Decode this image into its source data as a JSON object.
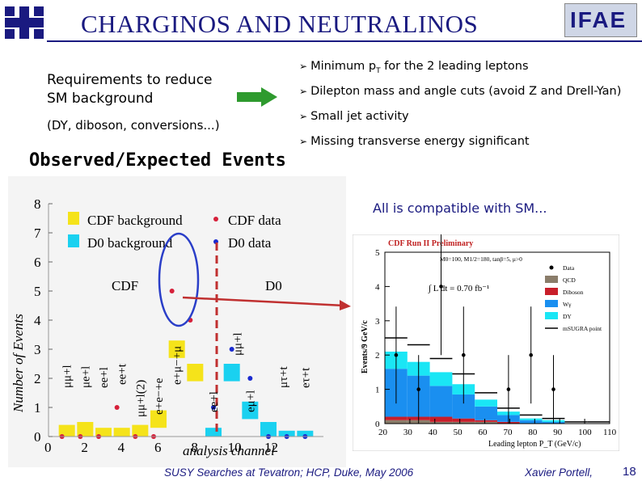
{
  "header": {
    "title": "CHARGINOS AND NEUTRALINOS",
    "left_logo_alt": "Fermilab logo",
    "right_logo_text": "IFAE"
  },
  "requirements": {
    "line1": "Requirements to reduce",
    "line2": "SM background",
    "dy_note": "(DY, diboson, conversions...)"
  },
  "bullets": [
    {
      "text": "Minimum p",
      "sub": "T",
      "rest": " for the 2 leading leptons"
    },
    {
      "text": "Dilepton mass and angle cuts (avoid Z and Drell-Yan)"
    },
    {
      "text": "Small jet activity"
    },
    {
      "text": "Missing transverse energy significant"
    }
  ],
  "observed_label": "Observed/Expected Events",
  "compat_note": "All is compatible with SM...",
  "colors": {
    "title_blue": "#1a1a80",
    "arrow_green": "#2e9a2e",
    "cdf_bkg": "#f5e31a",
    "d0_bkg": "#1ad1f0",
    "cdf_data": "#d6203a",
    "d0_data": "#1a2ad0",
    "ellipse": "#2a3ec8",
    "connector": "#c03030"
  },
  "chart_data": [
    {
      "type": "bar",
      "title": "",
      "xlabel": "analysis channel",
      "ylabel": "Number of Events",
      "xlim": [
        0,
        15
      ],
      "ylim": [
        0,
        8
      ],
      "x_ticks": [
        "0",
        "2",
        "4",
        "6",
        "8",
        "10",
        "12"
      ],
      "y_ticks": [
        "0",
        "1",
        "2",
        "3",
        "4",
        "5",
        "6",
        "7",
        "8"
      ],
      "legend": [
        "CDF background",
        "CDF data",
        "D0 background",
        "D0 data"
      ],
      "region_labels": [
        "CDF",
        "D0"
      ],
      "channel_labels": [
        "μμ+l",
        "μe+l",
        "ee+l",
        "ee+t",
        "μμ+l(2)",
        "e+e−+e",
        "e+μ−+μ",
        "ee+l",
        "eμ+l",
        "μμ+l",
        "μτ+t",
        "eτ+t"
      ],
      "series": [
        {
          "name": "CDF background",
          "x": [
            1,
            2,
            3,
            4,
            5,
            6,
            7,
            8
          ],
          "values": [
            0.4,
            0.5,
            0.3,
            0.3,
            0.4,
            0.9,
            3.3,
            2.5
          ]
        },
        {
          "name": "CDF data",
          "x": [
            1,
            2,
            3,
            4,
            5,
            6,
            7,
            8
          ],
          "values": [
            0,
            0,
            0,
            1,
            0,
            0,
            5,
            4
          ]
        },
        {
          "name": "D0 background",
          "x": [
            9,
            10,
            11,
            12,
            13,
            14
          ],
          "values": [
            0.3,
            2.5,
            1.2,
            0.5,
            0.2,
            0.2
          ]
        },
        {
          "name": "D0 data",
          "x": [
            9,
            10,
            11,
            12,
            13,
            14
          ],
          "values": [
            1,
            3,
            2,
            0,
            0,
            0
          ]
        }
      ]
    },
    {
      "type": "bar",
      "title": "CDF Run II Preliminary",
      "xlabel": "Leading lepton P_T (GeV/c)",
      "ylabel": "Events/9 GeV/c",
      "xlim": [
        20,
        110
      ],
      "ylim": [
        0,
        5
      ],
      "x_ticks": [
        "20",
        "30",
        "40",
        "50",
        "60",
        "70",
        "80",
        "90",
        "100",
        "110"
      ],
      "y_ticks": [
        "0",
        "1",
        "2",
        "3",
        "4",
        "5"
      ],
      "params": "M0=100, M1/2=180, tanβ=5, μ>0",
      "luminosity": "∫ L dt = 0.70 fb⁻¹",
      "legend": [
        "Data",
        "QCD",
        "Diboson",
        "Wγ",
        "DY",
        "mSUGRA point"
      ],
      "bins": [
        "20-29",
        "29-38",
        "38-47",
        "47-56",
        "56-65",
        "65-74",
        "74-83",
        "83-92",
        "92-101",
        "101-110"
      ],
      "series": [
        {
          "name": "QCD",
          "values": [
            0.1,
            0.1,
            0.05,
            0.05,
            0.05,
            0,
            0,
            0,
            0,
            0
          ]
        },
        {
          "name": "Diboson",
          "values": [
            0.1,
            0.1,
            0.15,
            0.1,
            0.05,
            0.05,
            0,
            0,
            0,
            0
          ]
        },
        {
          "name": "Wγ",
          "values": [
            1.4,
            1.2,
            0.9,
            0.7,
            0.4,
            0.2,
            0.1,
            0.05,
            0,
            0
          ]
        },
        {
          "name": "DY",
          "values": [
            0.5,
            0.4,
            0.4,
            0.3,
            0.2,
            0.1,
            0.05,
            0.05,
            0,
            0
          ]
        },
        {
          "name": "mSUGRA point",
          "values": [
            0.4,
            0.5,
            0.4,
            0.3,
            0.2,
            0.1,
            0.1,
            0.05,
            0.05,
            0.05
          ]
        },
        {
          "name": "Data",
          "values": [
            2,
            1,
            4,
            2,
            0,
            1,
            2,
            1,
            0,
            0
          ]
        }
      ]
    }
  ],
  "footer": {
    "citation": "SUSY Searches at Tevatron;  HCP, Duke, May 2006",
    "author": "Xavier Portell,",
    "page": "18"
  }
}
